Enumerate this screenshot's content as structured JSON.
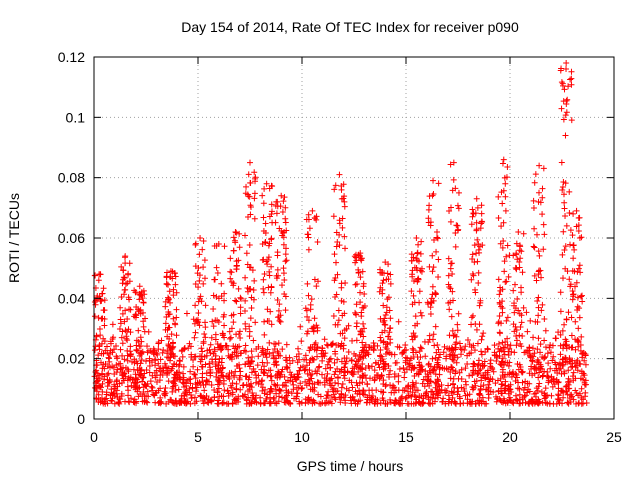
{
  "chart_data": {
    "type": "scatter",
    "title": "Day 154 of 2014, Rate Of TEC Index for receiver p090",
    "xlabel": "GPS time / hours",
    "ylabel": "ROTI / TECUs",
    "xlim": [
      0,
      25
    ],
    "ylim": [
      0,
      0.12
    ],
    "x_ticks": [
      0,
      5,
      10,
      15,
      20,
      25
    ],
    "y_ticks": [
      0,
      0.02,
      0.04,
      0.06,
      0.08,
      0.1,
      0.12
    ],
    "x_tick_labels": [
      "0",
      "5",
      "10",
      "15",
      "20",
      "25"
    ],
    "y_tick_labels": [
      "0",
      "0.02",
      "0.04",
      "0.06",
      "0.08",
      "0.1",
      "0.12"
    ],
    "grid": true,
    "marker": "plus",
    "series_color": "#ff0000",
    "x_data_range": [
      0,
      23.7
    ],
    "baseline_range": [
      0.005,
      0.025
    ],
    "peaks": [
      {
        "x": 0.3,
        "y": 0.048
      },
      {
        "x": 1.5,
        "y": 0.054
      },
      {
        "x": 2.2,
        "y": 0.044
      },
      {
        "x": 3.7,
        "y": 0.049
      },
      {
        "x": 5.1,
        "y": 0.06
      },
      {
        "x": 6.0,
        "y": 0.058
      },
      {
        "x": 6.8,
        "y": 0.062
      },
      {
        "x": 7.5,
        "y": 0.085
      },
      {
        "x": 8.3,
        "y": 0.078
      },
      {
        "x": 9.0,
        "y": 0.074
      },
      {
        "x": 10.5,
        "y": 0.069
      },
      {
        "x": 11.8,
        "y": 0.081
      },
      {
        "x": 12.8,
        "y": 0.055
      },
      {
        "x": 14.0,
        "y": 0.052
      },
      {
        "x": 15.5,
        "y": 0.06
      },
      {
        "x": 16.3,
        "y": 0.079
      },
      {
        "x": 17.3,
        "y": 0.085
      },
      {
        "x": 18.4,
        "y": 0.073
      },
      {
        "x": 19.7,
        "y": 0.086
      },
      {
        "x": 20.4,
        "y": 0.062
      },
      {
        "x": 21.4,
        "y": 0.084
      },
      {
        "x": 22.7,
        "y": 0.118
      },
      {
        "x": 23.2,
        "y": 0.069
      }
    ]
  }
}
